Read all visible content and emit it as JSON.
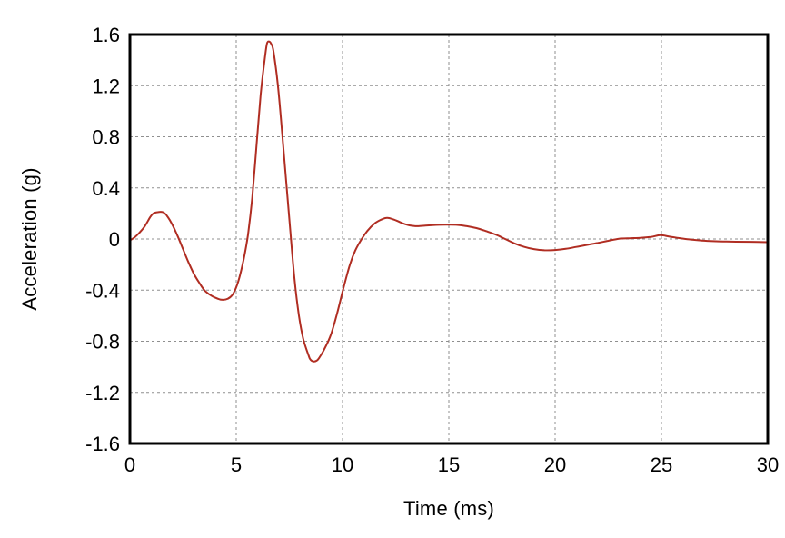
{
  "figure": {
    "background": "#ffffff",
    "frame_color": "#000000",
    "text_color": "#000000"
  },
  "chart_data": {
    "type": "line",
    "title": "",
    "xlabel": "Time (ms)",
    "ylabel": "Acceleration (g)",
    "xlim": [
      0,
      30
    ],
    "ylim": [
      -1.6,
      1.6
    ],
    "x_ticks": [
      0,
      5,
      10,
      15,
      20,
      25,
      30
    ],
    "x_tick_labels": [
      "0",
      "5",
      "10",
      "15",
      "20",
      "25",
      "30"
    ],
    "y_ticks": [
      1.6,
      1.2,
      0.8,
      0.4,
      0,
      -0.4,
      -0.8,
      -1.2,
      -1.6
    ],
    "y_tick_labels": [
      "1.6",
      "1.2",
      "0.8",
      "0.4",
      "0",
      "-0.4",
      "-0.8",
      "-1.2",
      "-1.6"
    ],
    "grid": "dashed",
    "grid_color": "#8f8f8f",
    "legend": "none",
    "series": [
      {
        "name": "acceleration-trace",
        "color": "#b02d22",
        "points": [
          [
            0,
            -0.01
          ],
          [
            0.2,
            0.01
          ],
          [
            0.45,
            0.05
          ],
          [
            0.7,
            0.1
          ],
          [
            0.95,
            0.17
          ],
          [
            1.1,
            0.2
          ],
          [
            1.3,
            0.21
          ],
          [
            1.55,
            0.21
          ],
          [
            1.75,
            0.18
          ],
          [
            2.0,
            0.11
          ],
          [
            2.25,
            0.02
          ],
          [
            2.5,
            -0.08
          ],
          [
            2.75,
            -0.18
          ],
          [
            3.0,
            -0.27
          ],
          [
            3.25,
            -0.34
          ],
          [
            3.5,
            -0.4
          ],
          [
            3.75,
            -0.435
          ],
          [
            4.0,
            -0.458
          ],
          [
            4.3,
            -0.475
          ],
          [
            4.6,
            -0.468
          ],
          [
            4.85,
            -0.43
          ],
          [
            5.1,
            -0.33
          ],
          [
            5.35,
            -0.16
          ],
          [
            5.55,
            0.03
          ],
          [
            5.75,
            0.32
          ],
          [
            5.95,
            0.72
          ],
          [
            6.15,
            1.13
          ],
          [
            6.35,
            1.42
          ],
          [
            6.45,
            1.53
          ],
          [
            6.55,
            1.545
          ],
          [
            6.65,
            1.525
          ],
          [
            6.75,
            1.47
          ],
          [
            6.95,
            1.22
          ],
          [
            7.15,
            0.85
          ],
          [
            7.35,
            0.45
          ],
          [
            7.55,
            0.05
          ],
          [
            7.75,
            -0.33
          ],
          [
            7.95,
            -0.6
          ],
          [
            8.15,
            -0.78
          ],
          [
            8.4,
            -0.91
          ],
          [
            8.5,
            -0.945
          ],
          [
            8.65,
            -0.958
          ],
          [
            8.8,
            -0.95
          ],
          [
            8.9,
            -0.93
          ],
          [
            9.15,
            -0.86
          ],
          [
            9.45,
            -0.75
          ],
          [
            9.75,
            -0.58
          ],
          [
            10.05,
            -0.38
          ],
          [
            10.35,
            -0.2
          ],
          [
            10.6,
            -0.09
          ],
          [
            10.9,
            0.0
          ],
          [
            11.2,
            0.07
          ],
          [
            11.5,
            0.12
          ],
          [
            11.8,
            0.15
          ],
          [
            12.1,
            0.165
          ],
          [
            12.45,
            0.15
          ],
          [
            12.8,
            0.125
          ],
          [
            13.15,
            0.107
          ],
          [
            13.5,
            0.1
          ],
          [
            13.9,
            0.105
          ],
          [
            14.4,
            0.11
          ],
          [
            14.9,
            0.112
          ],
          [
            15.4,
            0.11
          ],
          [
            15.85,
            0.1
          ],
          [
            16.3,
            0.085
          ],
          [
            16.75,
            0.062
          ],
          [
            17.2,
            0.035
          ],
          [
            17.65,
            0.0
          ],
          [
            18.1,
            -0.035
          ],
          [
            18.55,
            -0.062
          ],
          [
            19.0,
            -0.079
          ],
          [
            19.5,
            -0.088
          ],
          [
            20.0,
            -0.086
          ],
          [
            20.5,
            -0.077
          ],
          [
            21.0,
            -0.062
          ],
          [
            21.5,
            -0.046
          ],
          [
            22.0,
            -0.031
          ],
          [
            22.5,
            -0.014
          ],
          [
            23.0,
            0.002
          ],
          [
            23.5,
            0.006
          ],
          [
            24.0,
            0.009
          ],
          [
            24.5,
            0.016
          ],
          [
            24.95,
            0.03
          ],
          [
            25.35,
            0.02
          ],
          [
            25.8,
            0.008
          ],
          [
            26.3,
            -0.003
          ],
          [
            26.8,
            -0.011
          ],
          [
            27.3,
            -0.016
          ],
          [
            27.9,
            -0.019
          ],
          [
            28.5,
            -0.021
          ],
          [
            29.2,
            -0.022
          ],
          [
            30,
            -0.025
          ]
        ]
      }
    ]
  }
}
